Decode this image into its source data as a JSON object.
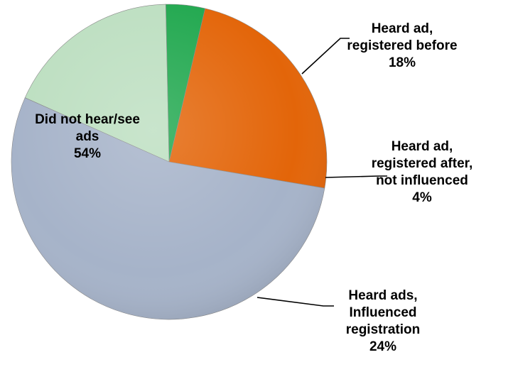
{
  "chart_data": {
    "type": "pie",
    "slices": [
      {
        "lines": [
          "Heard ad,",
          "registered before",
          "18%"
        ],
        "value": 18,
        "color": "#bddfc1",
        "label_anchor": "middle"
      },
      {
        "lines": [
          "Heard ad,",
          "registered after,",
          "not influenced",
          "4%"
        ],
        "value": 4,
        "color": "#21a84f",
        "label_anchor": "middle"
      },
      {
        "lines": [
          "Heard ads,",
          "Influenced",
          "registration",
          "24%"
        ],
        "value": 24,
        "color": "#e36509",
        "label_anchor": "middle"
      },
      {
        "lines": [
          "Did not hear/see",
          "ads",
          "54%"
        ],
        "value": 54,
        "color": "#a6b3c9",
        "label_anchor": "middle"
      }
    ],
    "start_angle_deg": -66,
    "direction": "clockwise"
  }
}
